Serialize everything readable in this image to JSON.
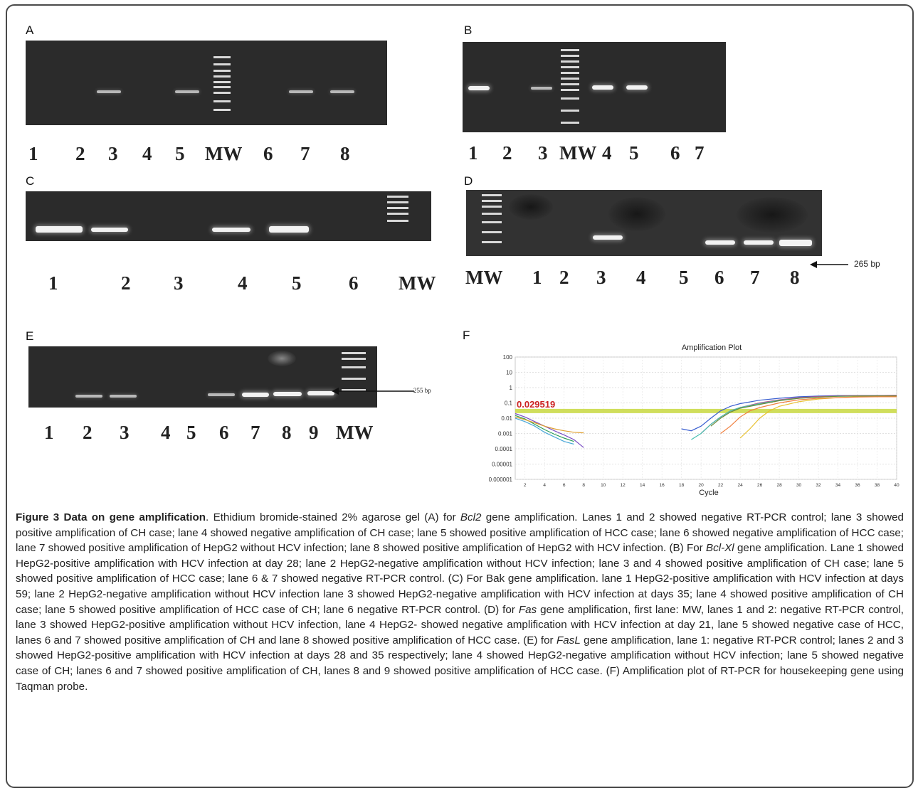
{
  "panels": {
    "A": {
      "letter": "A",
      "lanes": [
        "1",
        "2",
        "3",
        "4",
        "5",
        "MW",
        "6",
        "7",
        "8"
      ]
    },
    "B": {
      "letter": "B",
      "lanes": [
        "1",
        "2",
        "3",
        "MW",
        "4",
        "5",
        "6",
        "7"
      ]
    },
    "C": {
      "letter": "C",
      "lanes": [
        "1",
        "2",
        "3",
        "4",
        "5",
        "6",
        "MW"
      ]
    },
    "D": {
      "letter": "D",
      "lanes": [
        "MW",
        "1",
        "2",
        "3",
        "4",
        "5",
        "6",
        "7",
        "8"
      ],
      "arrow_label": "265 bp"
    },
    "E": {
      "letter": "E",
      "lanes": [
        "1",
        "2",
        "3",
        "4",
        "5",
        "6",
        "7",
        "8",
        "9",
        "MW"
      ],
      "arrow_label": "255 bp"
    },
    "F": {
      "letter": "F"
    }
  },
  "chart_data": {
    "type": "line",
    "title": "Amplification  Plot",
    "xlabel": "Cycle",
    "ylabel": "",
    "x_ticks": [
      "2",
      "4",
      "6",
      "8",
      "10",
      "12",
      "14",
      "16",
      "18",
      "20",
      "22",
      "24",
      "26",
      "28",
      "30",
      "32",
      "34",
      "36",
      "38",
      "40"
    ],
    "y_ticks": [
      "100",
      "10",
      "1",
      "0.1",
      "0.01",
      "0.001",
      "0.0001",
      "0.00001",
      "0.000001"
    ],
    "xlim": [
      1,
      40
    ],
    "ylim": [
      1e-06,
      100
    ],
    "y_scale": "log",
    "threshold": 0.029519,
    "threshold_label": "0.029519",
    "threshold_color": "#c8d840",
    "threshold_label_color": "#cc2222",
    "series": [
      {
        "color": "#7a4fc4",
        "x": [
          1,
          2,
          3,
          4,
          5,
          6,
          7,
          8
        ],
        "y": [
          0.02,
          0.012,
          0.006,
          0.003,
          0.0015,
          0.0008,
          0.0004,
          0.00012
        ]
      },
      {
        "color": "#2e9e5a",
        "x": [
          1,
          2,
          3,
          4,
          5,
          6,
          7
        ],
        "y": [
          0.015,
          0.009,
          0.004,
          0.0018,
          0.0009,
          0.0005,
          0.0003
        ]
      },
      {
        "color": "#e0a030",
        "x": [
          1,
          2,
          3,
          4,
          5,
          6,
          7,
          8
        ],
        "y": [
          0.012,
          0.008,
          0.005,
          0.003,
          0.002,
          0.0015,
          0.0012,
          0.0011
        ]
      },
      {
        "color": "#4aa8d8",
        "x": [
          1,
          2,
          3,
          4,
          5,
          6,
          7
        ],
        "y": [
          0.01,
          0.006,
          0.003,
          0.0012,
          0.0006,
          0.0003,
          0.0002
        ]
      },
      {
        "color": "#3a5fd0",
        "x": [
          18,
          19,
          20,
          21,
          22,
          23,
          24,
          26,
          28,
          30,
          32,
          34,
          36,
          38,
          40
        ],
        "y": [
          0.002,
          0.0015,
          0.003,
          0.01,
          0.03,
          0.06,
          0.09,
          0.15,
          0.2,
          0.25,
          0.28,
          0.3,
          0.3,
          0.3,
          0.3
        ]
      },
      {
        "color": "#c04a8a",
        "x": [
          20,
          21,
          22,
          23,
          24,
          26,
          28,
          30,
          32,
          34,
          36,
          38,
          40
        ],
        "y": [
          0.001,
          0.004,
          0.012,
          0.03,
          0.05,
          0.1,
          0.16,
          0.22,
          0.26,
          0.28,
          0.3,
          0.3,
          0.31
        ]
      },
      {
        "color": "#49c0b0",
        "x": [
          19,
          20,
          21,
          22,
          23,
          24,
          26,
          28,
          30,
          32,
          34,
          36,
          38,
          40
        ],
        "y": [
          0.0004,
          0.001,
          0.004,
          0.012,
          0.03,
          0.05,
          0.09,
          0.15,
          0.2,
          0.24,
          0.27,
          0.28,
          0.29,
          0.29
        ]
      },
      {
        "color": "#e8c030",
        "x": [
          24,
          25,
          26,
          27,
          28,
          30,
          32,
          34,
          36,
          38,
          40
        ],
        "y": [
          0.0005,
          0.002,
          0.01,
          0.03,
          0.06,
          0.12,
          0.18,
          0.22,
          0.25,
          0.26,
          0.27
        ]
      },
      {
        "color": "#f08040",
        "x": [
          22,
          23,
          24,
          25,
          26,
          28,
          30,
          32,
          34,
          36,
          38,
          40
        ],
        "y": [
          0.001,
          0.003,
          0.012,
          0.03,
          0.05,
          0.1,
          0.16,
          0.2,
          0.22,
          0.24,
          0.25,
          0.25
        ]
      },
      {
        "color": "#6a8a3a",
        "x": [
          21,
          22,
          23,
          24,
          26,
          28,
          30,
          32,
          34,
          36,
          38,
          40
        ],
        "y": [
          0.003,
          0.01,
          0.025,
          0.045,
          0.08,
          0.14,
          0.2,
          0.24,
          0.27,
          0.28,
          0.29,
          0.29
        ]
      }
    ]
  },
  "caption": {
    "title": "Figure 3 Data on gene amplification",
    "p1": ". Ethidium bromide-stained 2% agarose gel (A) for ",
    "gene_bcl2": "Bcl2",
    "p2": " gene amplification. Lanes 1 and 2 showed negative RT-PCR control; lane 3 showed positive amplification of CH case; lane 4 showed negative amplification of CH case; lane 5 showed positive amplification of HCC case; lane 6 showed negative amplification of HCC case; lane 7 showed positive amplification of HepG2 without HCV infection; lane 8 showed positive amplification of HepG2 with HCV infection. (B) For ",
    "gene_bclxl": "Bcl-Xl",
    "p3": " gene amplification. Lane 1 showed HepG2-positive amplification with HCV infection at day 28; lane 2 HepG2-negative amplification without HCV infection; lane 3 and 4 showed positive amplification of CH case; lane 5 showed positive amplification of HCC case; lane 6 & 7 showed negative RT-PCR control. (C) For Bak gene amplification. lane 1 HepG2-positive amplification with HCV infection at days 59; lane 2 HepG2-negative amplification without HCV infection lane 3 showed HepG2-negative amplification with HCV infection at days 35; lane 4 showed positive amplification of CH case; lane 5 showed positive amplification of HCC case of CH; lane 6 negative RT-PCR control. (D) for ",
    "gene_fas": "Fas",
    "p4": " gene amplification, first lane: MW, lanes 1 and 2: negative RT-PCR control, lane 3 showed HepG2-positive amplification without HCV infection, lane 4 HepG2- showed negative amplification with HCV infection at day 21, lane 5 showed negative case of HCC, lanes 6 and 7 showed positive amplification of CH and lane 8 showed positive amplification of HCC case. (E) for ",
    "gene_fasl": "FasL",
    "p5": " gene amplification, lane 1: negative RT-PCR control; lanes 2 and 3 showed HepG2-positive amplification with HCV infection at days 28 and 35 respectively; lane 4 showed HepG2-negative amplification without HCV infection; lane 5 showed negative case of CH; lanes 6 and 7 showed positive amplification of CH, lanes 8 and 9 showed positive amplification of HCC case. (F) Amplification plot of RT-PCR for housekeeping gene using Taqman probe."
  }
}
